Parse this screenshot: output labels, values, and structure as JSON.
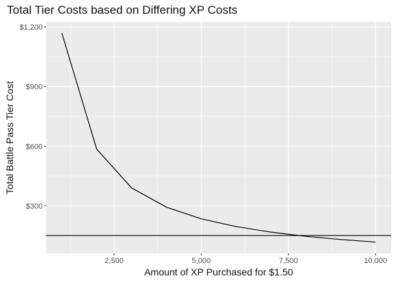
{
  "chart_data": {
    "type": "line",
    "title": "Total Tier Costs based on Differing XP Costs",
    "xlabel": "Amount of XP Purchased for $1.50",
    "ylabel": "Total Battle Pass Tier Cost",
    "xlim": [
      550,
      10450
    ],
    "ylim": [
      60,
      1225
    ],
    "x_ticks": [
      2500,
      5000,
      7500,
      10000
    ],
    "x_tick_labels": [
      "2,500",
      "5,000",
      "7,500",
      "10,000"
    ],
    "y_ticks": [
      300,
      600,
      900,
      1200
    ],
    "y_tick_labels": [
      "$300",
      "$600",
      "$900",
      "$1,200"
    ],
    "grid": true,
    "legend": "none",
    "background": "#ebebeb",
    "gridline_color": "#ffffff",
    "line_color": "#000000",
    "series": [
      {
        "x": [
          1000,
          2000,
          3000,
          4000,
          5000,
          6000,
          7000,
          8000,
          9000,
          10000
        ],
        "values": [
          1170,
          585,
          390,
          293,
          234,
          195,
          167,
          146,
          130,
          117
        ]
      }
    ],
    "reference_lines": [
      {
        "orientation": "horizontal",
        "y": 150
      }
    ]
  }
}
